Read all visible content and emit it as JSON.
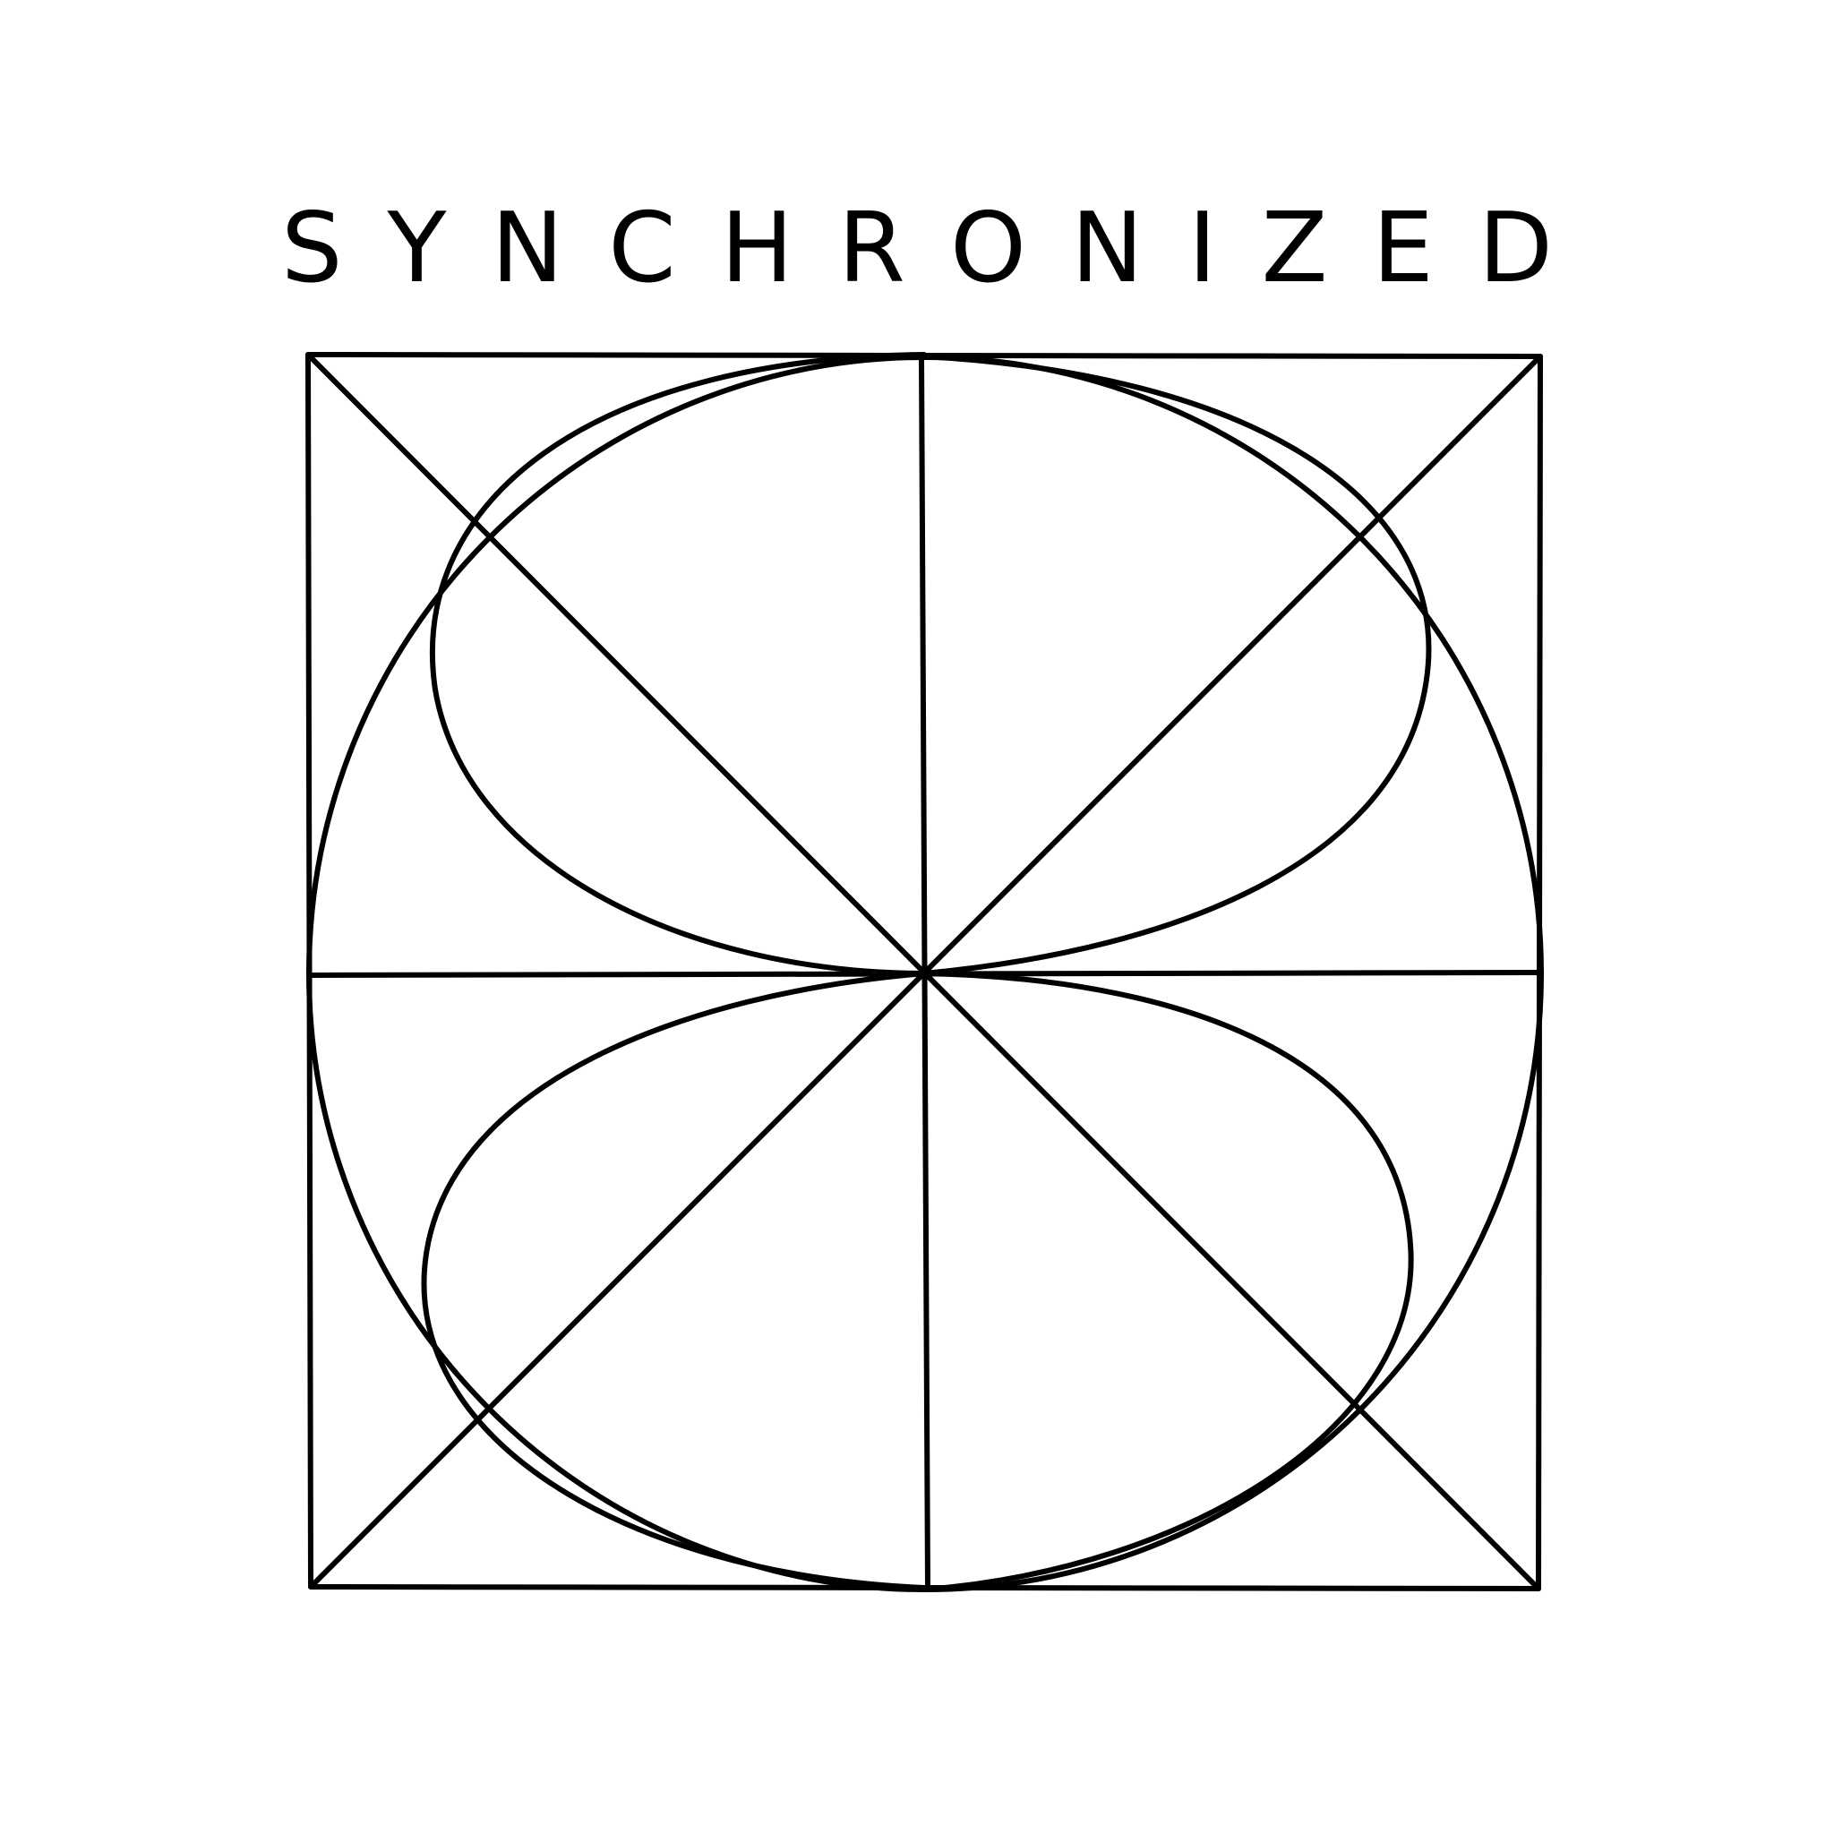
{
  "logo": {
    "wordmark": "SYNCHRONIZED",
    "mark_name": "synchronized-s-geometric-mark",
    "colors": {
      "background": "#ffffff",
      "ink": "#000000"
    }
  }
}
